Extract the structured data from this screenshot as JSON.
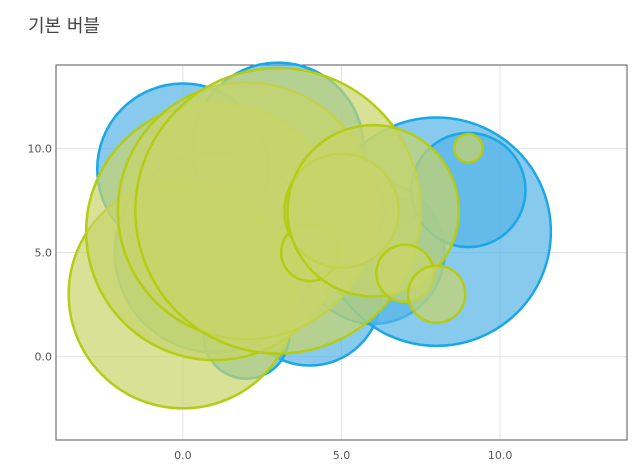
{
  "chart_data": {
    "type": "scatter",
    "subtype": "bubble",
    "title": "기본 버블",
    "xlabel": "",
    "ylabel": "",
    "xlim": [
      -4,
      14
    ],
    "ylim": [
      -4,
      14
    ],
    "x_ticks": [
      "0.0",
      "5.0",
      "10.0"
    ],
    "y_ticks": [
      "0.0",
      "5.0",
      "10.0"
    ],
    "grid": true,
    "legend": "none",
    "colors": {
      "blue_fill": "#55b4e6",
      "blue_stroke": "#1aa7e6",
      "green_fill": "#c8d46a",
      "green_stroke": "#b4cc14"
    },
    "series": [
      {
        "points": [
          {
            "x": 0,
            "y": 9,
            "r": 3
          },
          {
            "x": 3,
            "y": 10,
            "r": 3
          },
          {
            "x": 1,
            "y": 5,
            "r": 3.5
          },
          {
            "x": 4,
            "y": 3,
            "r": 2.5
          },
          {
            "x": 2,
            "y": 1,
            "r": 1.5
          },
          {
            "x": 5,
            "y": 7,
            "r": 1.5
          },
          {
            "x": 6,
            "y": 5,
            "r": 2.5
          },
          {
            "x": 7,
            "y": 7,
            "r": 0.4
          },
          {
            "x": 8,
            "y": 6,
            "r": 4
          },
          {
            "x": 9,
            "y": 8,
            "r": 2
          }
        ]
      },
      {
        "points": [
          {
            "x": 0,
            "y": 3,
            "r": 4
          },
          {
            "x": 1,
            "y": 6,
            "r": 4.5
          },
          {
            "x": 2,
            "y": 7,
            "r": 4.5
          },
          {
            "x": 3,
            "y": 7,
            "r": 5
          },
          {
            "x": 4,
            "y": 5,
            "r": 1
          },
          {
            "x": 5,
            "y": 7,
            "r": 2
          },
          {
            "x": 6,
            "y": 7,
            "r": 3
          },
          {
            "x": 7,
            "y": 4,
            "r": 1
          },
          {
            "x": 8,
            "y": 3,
            "r": 1
          },
          {
            "x": 9,
            "y": 10,
            "r": 0.5
          }
        ]
      }
    ]
  }
}
